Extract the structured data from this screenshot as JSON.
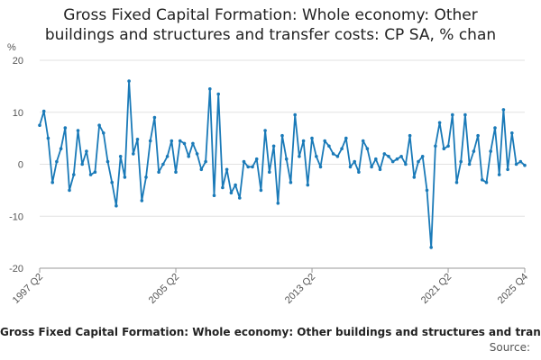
{
  "chart_data": {
    "type": "line",
    "title_lines": [
      "Gross Fixed Capital Formation: Whole economy: Other",
      "buildings and structures and transfer costs: CP SA, % chan"
    ],
    "ylabel": "%",
    "ylim": [
      -20,
      20
    ],
    "yticks": [
      20,
      10,
      0,
      -10,
      -20
    ],
    "x_tick_labels": [
      "1997 Q2",
      "2005 Q2",
      "2013 Q2",
      "2021 Q2",
      "2025 Q4"
    ],
    "x_tick_indices": [
      0,
      32,
      64,
      96,
      114
    ],
    "series": [
      {
        "name": "Gross Fixed Capital Formation: Whole economy: Other buildings and structures and transfer costs: CP SA, % change",
        "color": "#1a7ab8",
        "values": [
          7.5,
          10.2,
          5.0,
          -3.5,
          0.5,
          3.0,
          7.0,
          -5.0,
          -2.0,
          6.5,
          0.0,
          2.5,
          -2.0,
          -1.5,
          7.5,
          6.0,
          0.5,
          -3.5,
          -8.0,
          1.5,
          -2.5,
          16.0,
          2.0,
          4.8,
          -7.0,
          -2.5,
          4.5,
          9.0,
          -1.5,
          0.0,
          1.5,
          4.5,
          -1.5,
          4.5,
          4.0,
          1.5,
          4.0,
          2.0,
          -1.0,
          0.5,
          14.5,
          -6.0,
          13.5,
          -4.5,
          -1.0,
          -5.5,
          -4.0,
          -6.5,
          0.5,
          -0.5,
          -0.5,
          1.0,
          -5.0,
          6.5,
          -1.5,
          3.5,
          -7.5,
          5.5,
          1.0,
          -3.5,
          9.5,
          1.5,
          4.5,
          -4.0,
          5.0,
          1.5,
          -0.5,
          4.5,
          3.5,
          2.0,
          1.5,
          3.0,
          5.0,
          -0.5,
          0.5,
          -1.5,
          4.5,
          3.0,
          -0.5,
          1.0,
          -1.0,
          2.0,
          1.5,
          0.5,
          1.0,
          1.5,
          0.0,
          5.5,
          -2.5,
          0.5,
          1.5,
          -5.0,
          -16.0,
          3.5,
          8.0,
          3.0,
          3.5,
          9.5,
          -3.5,
          0.5,
          9.5,
          0.0,
          2.5,
          5.5,
          -3.0,
          -3.5,
          2.5,
          7.0,
          -2.0,
          10.5,
          -1.0,
          6.0,
          0.0,
          0.5,
          -0.2
        ]
      }
    ],
    "footer": "Gross Fixed Capital Formation: Whole economy: Other buildings and structures and transfer costs: CP SA, % change",
    "source_label": "Source:"
  }
}
